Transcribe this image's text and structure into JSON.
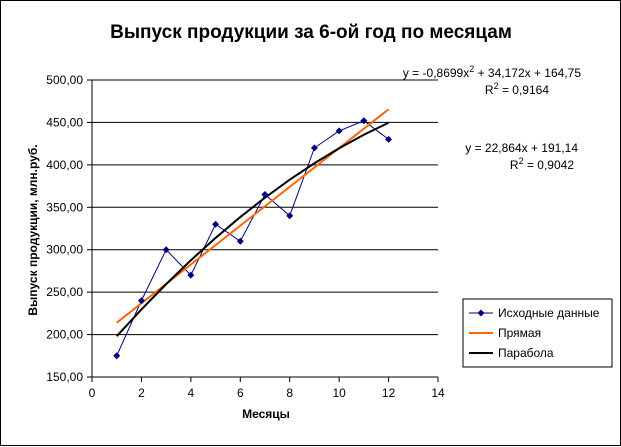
{
  "chart_data": {
    "type": "scatter",
    "title": "Выпуск продукции за 6-ой год по месяцам",
    "xlabel": "Месяцы",
    "ylabel": "Выпуск продукции, млн.руб.",
    "xlim": [
      0,
      14
    ],
    "ylim": [
      150,
      500
    ],
    "x_ticks": [
      "0",
      "2",
      "4",
      "6",
      "8",
      "10",
      "12",
      "14"
    ],
    "y_ticks": [
      "150,00",
      "200,00",
      "250,00",
      "300,00",
      "350,00",
      "400,00",
      "450,00",
      "500,00"
    ],
    "grid": "horizontal",
    "legend_position": "right",
    "series": [
      {
        "name": "Исходные данные",
        "color": "#000080",
        "marker": "diamond",
        "x": [
          1,
          2,
          3,
          4,
          5,
          6,
          7,
          8,
          9,
          10,
          11,
          12
        ],
        "y": [
          175,
          240,
          300,
          270,
          330,
          310,
          365,
          340,
          420,
          440,
          452,
          430
        ]
      },
      {
        "name": "Прямая",
        "color": "#ff6600",
        "type": "linear",
        "x": [
          1,
          12
        ],
        "y": [
          214.0,
          465.51
        ]
      },
      {
        "name": "Парабола",
        "color": "#000000",
        "type": "polynomial",
        "x": [
          1,
          2,
          3,
          4,
          5,
          6,
          7,
          8,
          9,
          10,
          11,
          12
        ],
        "y": [
          198.05,
          229.62,
          259.45,
          287.54,
          313.89,
          338.5,
          361.37,
          382.5,
          401.89,
          419.54,
          435.45,
          449.62
        ]
      }
    ],
    "annotations": [
      {
        "text": "y = -0,8699x",
        "sup": "2",
        "tail": " + 34,172x + 164,75"
      },
      {
        "text": "R",
        "sup": "2",
        "tail": " = 0,9164"
      },
      {
        "text": "y = 22,864x + 191,14"
      },
      {
        "text": "R",
        "sup": "2",
        "tail": " = 0,9042"
      }
    ]
  }
}
